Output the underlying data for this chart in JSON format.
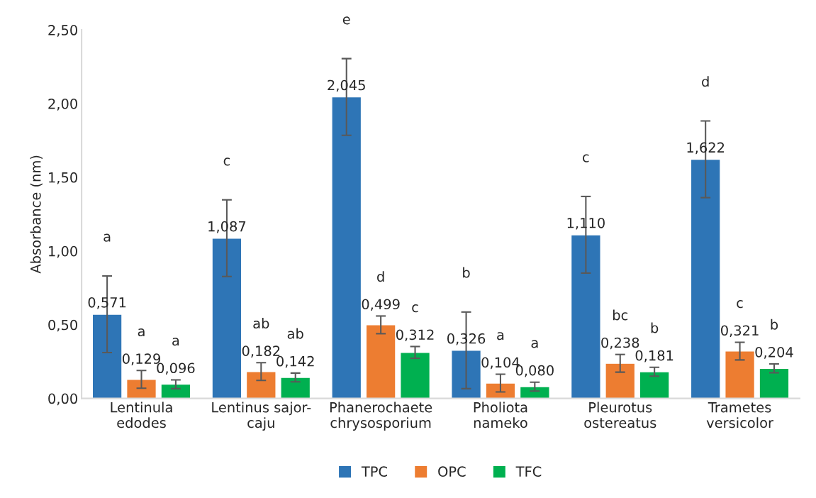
{
  "chart_data": {
    "type": "bar",
    "ylabel": "Absorbance (nm)",
    "categories": [
      "Lentinula\nedodes",
      "Lentinus sajor-\ncaju",
      "Phanerochaete\nchrysosporium",
      "Pholiota\nnameko",
      "Pleurotus\nostereatus",
      "Trametes\nversicolor"
    ],
    "series": [
      {
        "name": "TPC",
        "color": "#2e75b6",
        "values": [
          0.571,
          1.087,
          2.045,
          0.326,
          1.11,
          1.622
        ],
        "errors": [
          0.26,
          0.26,
          0.26,
          0.26,
          0.26,
          0.26
        ],
        "value_labels": [
          "0,571",
          "1,087",
          "2,045",
          "0,326",
          "1,110",
          "1,622"
        ]
      },
      {
        "name": "OPC",
        "color": "#ed7d31",
        "values": [
          0.129,
          0.182,
          0.499,
          0.104,
          0.238,
          0.321
        ],
        "errors": [
          0.06,
          0.06,
          0.06,
          0.06,
          0.06,
          0.06
        ],
        "value_labels": [
          "0,129",
          "0,182",
          "0,499",
          "0,104",
          "0,238",
          "0,321"
        ]
      },
      {
        "name": "TFC",
        "color": "#00b050",
        "values": [
          0.096,
          0.142,
          0.312,
          0.08,
          0.181,
          0.204
        ],
        "errors": [
          0.03,
          0.03,
          0.04,
          0.03,
          0.03,
          0.03
        ],
        "value_labels": [
          "0,096",
          "0,142",
          "0,312",
          "0,080",
          "0,181",
          "0,204"
        ]
      }
    ],
    "ylim": [
      0,
      2.5
    ],
    "yticks": [
      {
        "value": 0,
        "label": "0,00"
      },
      {
        "value": 0.5,
        "label": "0,50"
      },
      {
        "value": 1,
        "label": "1,00"
      },
      {
        "value": 1.5,
        "label": "1,50"
      },
      {
        "value": 2,
        "label": "2,00"
      },
      {
        "value": 2.5,
        "label": "2,50"
      }
    ],
    "grid": false,
    "legend": "bottom",
    "annotations": [
      "a",
      "a",
      "a",
      "c",
      "ab",
      "ab",
      "e",
      "d",
      "c",
      "b",
      "a",
      "a",
      "c",
      "bc",
      "b",
      "d",
      "c",
      "b"
    ]
  }
}
